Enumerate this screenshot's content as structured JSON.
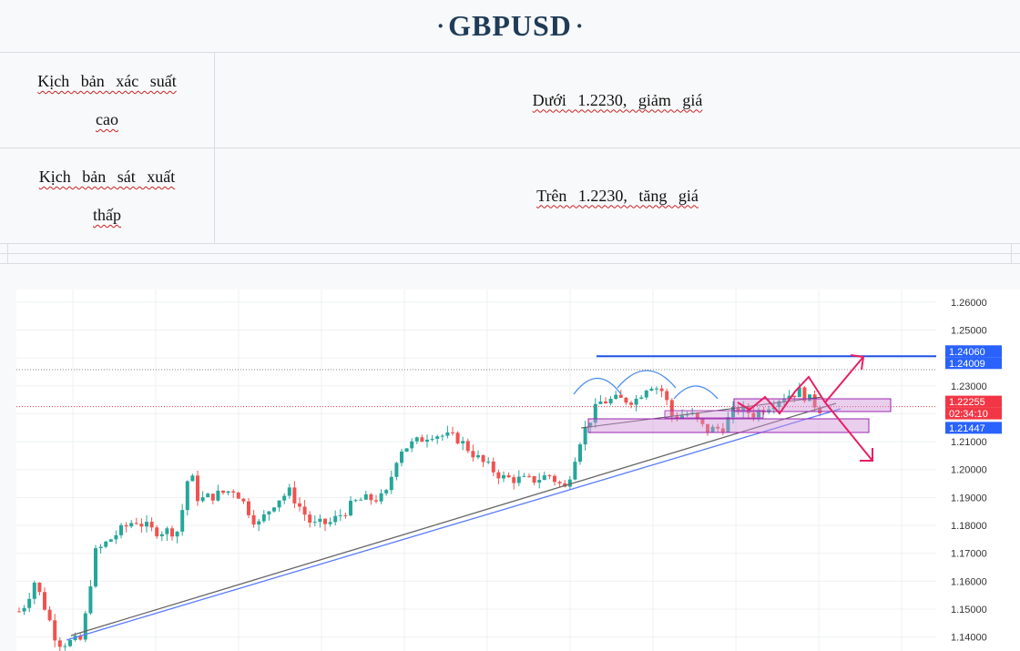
{
  "header": {
    "title": "GBPUSD",
    "dot": "·"
  },
  "scenarios": [
    {
      "label": "Kịch bản xác suất cao",
      "text": "Dưới 1.2230, giảm giá"
    },
    {
      "label": "Kịch bản sát xuất thấp",
      "text": "Trên 1.2230, tăng giá"
    }
  ],
  "chart_data": {
    "type": "candlestick",
    "ylim": [
      1.135,
      1.2645
    ],
    "yticks": [
      "1.26000",
      "1.25000",
      "1.24000",
      "1.23000",
      "1.22000",
      "1.21000",
      "1.20000",
      "1.19000",
      "1.18000",
      "1.17000",
      "1.16000",
      "1.15000",
      "1.14000"
    ],
    "price_labels": [
      {
        "text": "1.24060",
        "value": 1.2406,
        "color": "#2962ff"
      },
      {
        "text": "1.24009",
        "value": 1.24009,
        "color": "#2962ff"
      },
      {
        "text": "1.22255",
        "value": 1.22255,
        "color": "#f23645"
      },
      {
        "text": "02:34:10",
        "value": 1.2195,
        "color": "#f23645"
      },
      {
        "text": "1.21447",
        "value": 1.21447,
        "color": "#2962ff"
      }
    ],
    "resistance_level": 1.2406,
    "colors": {
      "up": "#26a69a",
      "down": "#ef5350",
      "arrow": "#e91e63",
      "zone": "#ce93d8",
      "blue": "#1e53e5"
    }
  }
}
